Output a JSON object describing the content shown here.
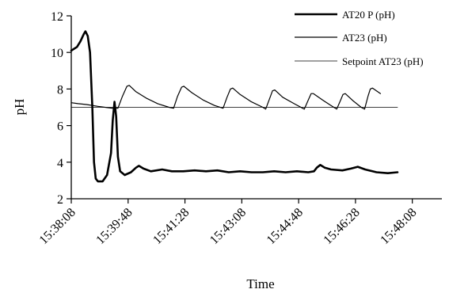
{
  "chart_data": {
    "type": "line",
    "xlabel": "Time",
    "ylabel": "pH",
    "x_unit": "time of day (hh:mm:ss)",
    "xlim": [
      "15:38:08",
      "15:49:00"
    ],
    "ylim": [
      2,
      12
    ],
    "y_ticks": [
      2,
      4,
      6,
      8,
      10,
      12
    ],
    "x_ticks": [
      "15:38:08",
      "15:39:48",
      "15:41:28",
      "15:43:08",
      "15:44:48",
      "15:46:28",
      "15:48:08"
    ],
    "grid": false,
    "legend_position": "top-right",
    "series": [
      {
        "name": "AT20 P (pH)",
        "color": "#000000",
        "style": "thick",
        "points": [
          [
            "15:38:08",
            10.1
          ],
          [
            "15:38:18",
            10.3
          ],
          [
            "15:38:24",
            10.6
          ],
          [
            "15:38:30",
            11.0
          ],
          [
            "15:38:33",
            11.15
          ],
          [
            "15:38:37",
            10.9
          ],
          [
            "15:38:41",
            10.0
          ],
          [
            "15:38:45",
            7.0
          ],
          [
            "15:38:48",
            4.0
          ],
          [
            "15:38:51",
            3.1
          ],
          [
            "15:38:55",
            2.95
          ],
          [
            "15:39:03",
            2.95
          ],
          [
            "15:39:11",
            3.3
          ],
          [
            "15:39:18",
            4.5
          ],
          [
            "15:39:21",
            6.3
          ],
          [
            "15:39:24",
            7.3
          ],
          [
            "15:39:27",
            6.5
          ],
          [
            "15:39:30",
            4.3
          ],
          [
            "15:39:34",
            3.5
          ],
          [
            "15:39:42",
            3.3
          ],
          [
            "15:39:53",
            3.45
          ],
          [
            "15:40:02",
            3.7
          ],
          [
            "15:40:07",
            3.8
          ],
          [
            "15:40:15",
            3.65
          ],
          [
            "15:40:28",
            3.5
          ],
          [
            "15:40:48",
            3.6
          ],
          [
            "15:41:05",
            3.5
          ],
          [
            "15:41:25",
            3.5
          ],
          [
            "15:41:45",
            3.55
          ],
          [
            "15:42:05",
            3.5
          ],
          [
            "15:42:25",
            3.55
          ],
          [
            "15:42:45",
            3.45
          ],
          [
            "15:43:05",
            3.5
          ],
          [
            "15:43:25",
            3.45
          ],
          [
            "15:43:45",
            3.45
          ],
          [
            "15:44:05",
            3.5
          ],
          [
            "15:44:25",
            3.45
          ],
          [
            "15:44:45",
            3.5
          ],
          [
            "15:45:05",
            3.45
          ],
          [
            "15:45:15",
            3.5
          ],
          [
            "15:45:20",
            3.7
          ],
          [
            "15:45:26",
            3.85
          ],
          [
            "15:45:34",
            3.7
          ],
          [
            "15:45:45",
            3.6
          ],
          [
            "15:46:05",
            3.55
          ],
          [
            "15:46:20",
            3.65
          ],
          [
            "15:46:32",
            3.75
          ],
          [
            "15:46:45",
            3.6
          ],
          [
            "15:47:05",
            3.45
          ],
          [
            "15:47:25",
            3.4
          ],
          [
            "15:47:42",
            3.45
          ]
        ]
      },
      {
        "name": "AT23 (pH)",
        "color": "#000000",
        "style": "thin",
        "points": [
          [
            "15:38:08",
            7.25
          ],
          [
            "15:38:20",
            7.2
          ],
          [
            "15:38:35",
            7.15
          ],
          [
            "15:38:55",
            7.05
          ],
          [
            "15:39:20",
            6.95
          ],
          [
            "15:39:30",
            6.95
          ],
          [
            "15:39:38",
            7.6
          ],
          [
            "15:39:46",
            8.15
          ],
          [
            "15:39:50",
            8.2
          ],
          [
            "15:40:02",
            7.85
          ],
          [
            "15:40:20",
            7.5
          ],
          [
            "15:40:40",
            7.2
          ],
          [
            "15:41:00",
            7.0
          ],
          [
            "15:41:08",
            6.95
          ],
          [
            "15:41:15",
            7.6
          ],
          [
            "15:41:22",
            8.1
          ],
          [
            "15:41:26",
            8.15
          ],
          [
            "15:41:40",
            7.8
          ],
          [
            "15:42:00",
            7.4
          ],
          [
            "15:42:20",
            7.1
          ],
          [
            "15:42:35",
            6.95
          ],
          [
            "15:42:42",
            7.55
          ],
          [
            "15:42:48",
            8.0
          ],
          [
            "15:42:52",
            8.05
          ],
          [
            "15:43:05",
            7.7
          ],
          [
            "15:43:25",
            7.3
          ],
          [
            "15:43:45",
            7.0
          ],
          [
            "15:43:50",
            6.9
          ],
          [
            "15:43:56",
            7.4
          ],
          [
            "15:44:02",
            7.9
          ],
          [
            "15:44:06",
            7.95
          ],
          [
            "15:44:20",
            7.55
          ],
          [
            "15:44:40",
            7.2
          ],
          [
            "15:44:58",
            6.9
          ],
          [
            "15:45:05",
            7.4
          ],
          [
            "15:45:10",
            7.75
          ],
          [
            "15:45:14",
            7.75
          ],
          [
            "15:45:30",
            7.4
          ],
          [
            "15:45:45",
            7.1
          ],
          [
            "15:45:55",
            6.9
          ],
          [
            "15:46:02",
            7.4
          ],
          [
            "15:46:06",
            7.7
          ],
          [
            "15:46:10",
            7.75
          ],
          [
            "15:46:24",
            7.35
          ],
          [
            "15:46:38",
            7.0
          ],
          [
            "15:46:44",
            6.9
          ],
          [
            "15:46:50",
            7.6
          ],
          [
            "15:46:54",
            8.0
          ],
          [
            "15:46:58",
            8.05
          ],
          [
            "15:47:12",
            7.75
          ]
        ]
      },
      {
        "name": "Setpoint AT23 (pH)",
        "color": "#000000",
        "style": "hairline",
        "points": [
          [
            "15:38:08",
            7.0
          ],
          [
            "15:47:42",
            7.0
          ]
        ]
      }
    ]
  }
}
